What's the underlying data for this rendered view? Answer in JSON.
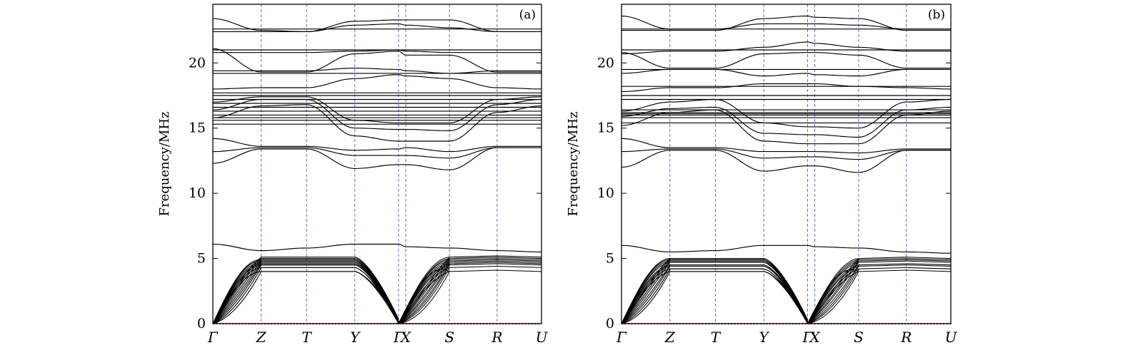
{
  "chart_data": [
    {
      "type": "line",
      "panel_label": "(a)",
      "ylabel": "Frequency/MHz",
      "ylim": [
        0,
        24.5
      ],
      "yticks": [
        0,
        5,
        10,
        15,
        20
      ],
      "kpoints": [
        {
          "label": "Γ",
          "pos": 0.0
        },
        {
          "label": "Z",
          "pos": 0.147
        },
        {
          "label": "T",
          "pos": 0.285
        },
        {
          "label": "Y",
          "pos": 0.432
        },
        {
          "label": "Γ",
          "pos": 0.565
        },
        {
          "label": "X",
          "pos": 0.587
        },
        {
          "label": "S",
          "pos": 0.72
        },
        {
          "label": "R",
          "pos": 0.865
        },
        {
          "label": "U",
          "pos": 1.0
        }
      ],
      "zero_line": {
        "value": 0,
        "color": "#d40000",
        "style": "dotted"
      },
      "acoustic": {
        "gamma1_tops": [
          0.6,
          1.0,
          1.4,
          1.8,
          2.2,
          2.6,
          3.0,
          3.3,
          3.6,
          3.9,
          4.1,
          4.3,
          4.5,
          4.7,
          4.9,
          5.0
        ],
        "gamma2_tops": [
          0.3,
          0.7,
          1.0,
          1.3,
          1.7,
          2.0,
          2.4,
          2.7,
          3.0,
          3.3,
          3.6,
          3.9,
          4.1,
          4.3,
          4.5,
          4.7,
          4.8,
          5.0,
          5.1
        ],
        "plateau": [
          4.0,
          4.3,
          4.5,
          4.6,
          4.7,
          4.8,
          4.9,
          5.0,
          5.1
        ],
        "top_band": [
          6.1,
          5.6,
          5.8,
          6.1,
          6.1,
          5.9,
          5.8,
          5.6,
          5.5
        ]
      },
      "optical": {
        "flat": [
          15.3,
          15.6,
          15.8,
          16.0,
          16.3,
          16.6,
          16.9,
          17.2,
          17.5,
          17.7,
          19.2,
          21.0,
          22.6
        ],
        "upper_domes": [
          [
            22.4,
            22.4,
            22.4,
            23.2,
            23.3,
            23.3,
            23.3,
            22.4,
            22.4
          ],
          [
            20.8,
            20.8,
            20.8,
            20.9,
            21.0,
            20.9,
            20.8,
            20.8,
            20.8
          ],
          [
            19.4,
            19.4,
            19.4,
            19.6,
            19.5,
            19.4,
            19.2,
            19.4,
            19.4
          ],
          [
            18.0,
            18.1,
            18.1,
            18.8,
            19.1,
            19.0,
            18.8,
            18.1,
            18.0
          ],
          [
            21.1,
            19.3,
            19.3,
            20.7,
            20.9,
            20.6,
            20.6,
            19.3,
            19.3
          ],
          [
            23.4,
            22.5,
            22.4,
            22.9,
            23.0,
            22.9,
            22.7,
            22.4,
            22.4
          ]
        ],
        "lower_valleys": [
          [
            17.0,
            17.4,
            17.4,
            15.6,
            15.4,
            15.4,
            15.4,
            17.2,
            17.4
          ],
          [
            16.4,
            17.2,
            17.2,
            15.0,
            14.9,
            14.9,
            14.8,
            16.8,
            17.2
          ],
          [
            15.8,
            16.7,
            16.8,
            14.4,
            14.0,
            14.0,
            14.0,
            16.2,
            16.7
          ],
          [
            14.2,
            13.6,
            13.6,
            13.3,
            13.4,
            13.5,
            13.2,
            13.6,
            13.6
          ],
          [
            13.2,
            13.5,
            13.5,
            12.9,
            12.9,
            12.9,
            12.7,
            13.5,
            13.5
          ],
          [
            12.3,
            13.4,
            13.4,
            11.9,
            12.2,
            12.2,
            11.8,
            13.5,
            13.5
          ]
        ]
      }
    },
    {
      "type": "line",
      "panel_label": "(b)",
      "ylabel": "Frequency/MHz",
      "ylim": [
        0,
        24.5
      ],
      "yticks": [
        0,
        5,
        10,
        15,
        20
      ],
      "kpoints": [
        {
          "label": "Γ",
          "pos": 0.0
        },
        {
          "label": "Z",
          "pos": 0.147
        },
        {
          "label": "T",
          "pos": 0.285
        },
        {
          "label": "Y",
          "pos": 0.432
        },
        {
          "label": "Γ",
          "pos": 0.565
        },
        {
          "label": "X",
          "pos": 0.587
        },
        {
          "label": "S",
          "pos": 0.72
        },
        {
          "label": "R",
          "pos": 0.865
        },
        {
          "label": "U",
          "pos": 1.0
        }
      ],
      "zero_line": {
        "value": 0,
        "color": "#d40000",
        "style": "dotted"
      },
      "acoustic": {
        "gamma1_tops": [
          0.5,
          0.9,
          1.3,
          1.7,
          2.1,
          2.5,
          2.9,
          3.2,
          3.5,
          3.8,
          4.0,
          4.2,
          4.4,
          4.6,
          4.8,
          4.9
        ],
        "gamma2_tops": [
          0.4,
          0.8,
          1.1,
          1.5,
          1.9,
          2.2,
          2.6,
          2.9,
          3.2,
          3.5,
          3.8,
          4.0,
          4.2,
          4.4,
          4.6,
          4.8,
          5.0
        ],
        "plateau": [
          4.0,
          4.2,
          4.4,
          4.5,
          4.7,
          4.8,
          4.9,
          5.0
        ],
        "top_band": [
          6.0,
          5.5,
          5.6,
          6.0,
          6.0,
          5.9,
          5.8,
          5.5,
          5.4
        ]
      },
      "optical": {
        "flat": [
          15.4,
          15.8,
          16.0,
          16.1,
          16.2,
          16.4,
          17.2,
          17.5,
          18.2,
          19.5,
          21.0,
          22.6
        ],
        "upper_domes": [
          [
            22.5,
            22.5,
            22.5,
            23.4,
            23.6,
            23.5,
            23.4,
            22.5,
            22.5
          ],
          [
            20.7,
            20.9,
            20.9,
            21.2,
            21.6,
            21.5,
            21.2,
            20.9,
            20.9
          ],
          [
            19.2,
            19.5,
            19.5,
            19.0,
            19.2,
            19.1,
            19.0,
            19.5,
            19.5
          ],
          [
            17.8,
            18.1,
            18.1,
            18.4,
            18.4,
            18.4,
            18.2,
            18.1,
            18.0
          ],
          [
            20.8,
            19.6,
            19.6,
            20.7,
            20.8,
            20.8,
            20.6,
            19.6,
            19.6
          ],
          [
            23.6,
            22.6,
            22.6,
            23.0,
            23.0,
            23.0,
            22.9,
            22.6,
            22.6
          ]
        ],
        "lower_valleys": [
          [
            16.3,
            17.0,
            17.2,
            15.4,
            15.1,
            15.1,
            15.0,
            17.0,
            17.2
          ],
          [
            15.9,
            16.5,
            16.6,
            14.6,
            14.5,
            14.5,
            14.3,
            16.4,
            16.6
          ],
          [
            15.2,
            16.2,
            16.4,
            14.0,
            13.8,
            13.8,
            13.8,
            16.0,
            16.3
          ],
          [
            14.2,
            13.5,
            13.5,
            13.2,
            13.2,
            13.2,
            13.1,
            13.4,
            13.4
          ],
          [
            13.2,
            13.4,
            13.4,
            12.7,
            12.8,
            12.8,
            12.6,
            13.3,
            13.3
          ],
          [
            12.0,
            13.3,
            13.3,
            11.7,
            12.1,
            12.1,
            11.6,
            13.3,
            13.3
          ]
        ]
      }
    }
  ]
}
